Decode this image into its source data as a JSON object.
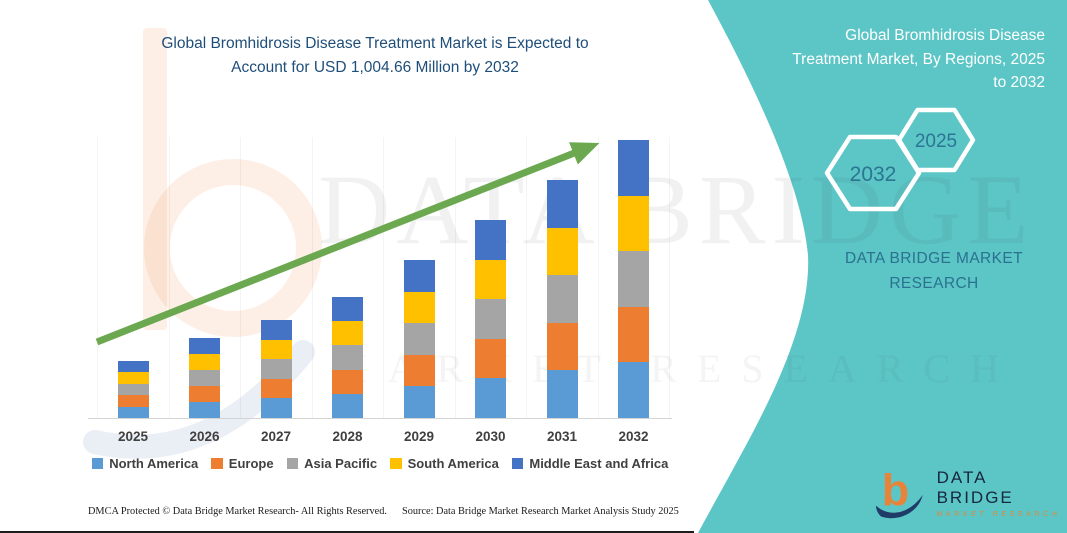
{
  "header": {
    "title_line1": "Global Bromhidrosis Disease Treatment Market is Expected to",
    "title_line2": "Account for USD 1,004.66 Million by 2032",
    "title_color": "#1F4E79"
  },
  "chart_data": {
    "type": "bar",
    "stacked": true,
    "title": "Global Bromhidrosis Disease Treatment Market is Expected to Account for USD 1,004.66 Million by 2032",
    "unit": "USD Million",
    "categories": [
      "2025",
      "2026",
      "2027",
      "2028",
      "2029",
      "2030",
      "2031",
      "2032"
    ],
    "series": [
      {
        "name": "North America",
        "color": "#5B9BD5",
        "values": [
          41.2,
          57.8,
          70.8,
          87.4,
          114.2,
          143.2,
          172.0,
          200.93
        ]
      },
      {
        "name": "Europe",
        "color": "#ED7D31",
        "values": [
          41.2,
          57.8,
          70.8,
          87.4,
          114.2,
          143.2,
          172.0,
          200.93
        ]
      },
      {
        "name": "Asia Pacific",
        "color": "#A5A5A5",
        "values": [
          41.2,
          57.8,
          70.8,
          87.4,
          114.2,
          143.2,
          172.0,
          200.93
        ]
      },
      {
        "name": "South America",
        "color": "#FFC000",
        "values": [
          41.2,
          57.8,
          70.8,
          87.4,
          114.2,
          143.2,
          172.0,
          200.93
        ]
      },
      {
        "name": "Middle East and Africa",
        "color": "#4472C4",
        "values": [
          41.2,
          57.8,
          70.8,
          87.4,
          114.2,
          143.2,
          172.0,
          200.93
        ]
      }
    ],
    "totals_usd_million": [
      206,
      289,
      354,
      437,
      571,
      716,
      860,
      1004.66
    ],
    "values_are_estimates": true,
    "xlabel": "",
    "ylabel": "",
    "y_axis_visible": false,
    "grid": "minimal",
    "legend_position": "bottom",
    "trend_arrow": true,
    "trend_arrow_color": "#6BA84F"
  },
  "right_panel": {
    "bg_color": "#5CC5C6",
    "title": "Global Bromhidrosis Disease Treatment Market, By Regions, 2025 to 2032",
    "hexagons": [
      {
        "label": "2032"
      },
      {
        "label": "2025"
      }
    ],
    "hex_text_color": "#2C7593",
    "brand_line1": "DATA BRIDGE MARKET",
    "brand_line2": "RESEARCH"
  },
  "watermark": {
    "line1": "DATA BRIDGE",
    "line2": "MARKET RESEARCH"
  },
  "logo": {
    "name": "DATA BRIDGE",
    "sub": "MARKET RESEARCH",
    "orange": "#E8833A",
    "navy": "#1F3C68"
  },
  "footer": {
    "left": "DMCA Protected © Data Bridge Market Research-  All Rights Reserved.",
    "source": "Source: Data Bridge Market Research  Market Analysis Study 2025"
  }
}
